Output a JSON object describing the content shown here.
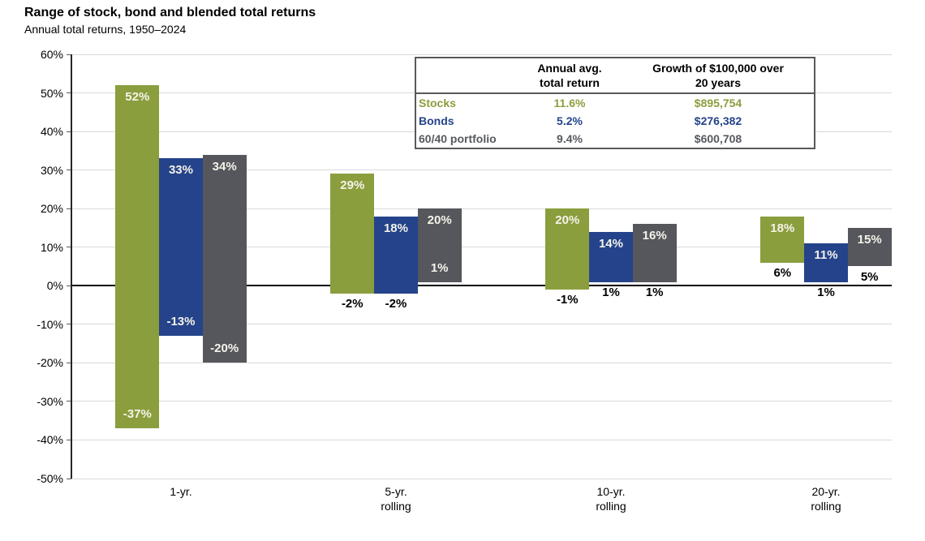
{
  "chart_data": {
    "type": "bar",
    "subtype": "floating-column-ranges",
    "title": "Range of stock, bond and blended total returns",
    "subtitle": "Annual total returns, 1950–2024",
    "categories": [
      "1-yr.",
      "5-yr.\nrolling",
      "10-yr.\nrolling",
      "20-yr.\nrolling"
    ],
    "ylim": [
      -50,
      60
    ],
    "ytick_step": 10,
    "ytick_labels": [
      "60%",
      "50%",
      "40%",
      "30%",
      "20%",
      "10%",
      "0%",
      "-10%",
      "-20%",
      "-30%",
      "-40%",
      "-50%"
    ],
    "grid": true,
    "legend_position": "none",
    "series": [
      {
        "name": "Stocks",
        "color": "#8a9e3d",
        "ranges": [
          {
            "min": -37,
            "max": 52
          },
          {
            "min": -2,
            "max": 29
          },
          {
            "min": -1,
            "max": 20
          },
          {
            "min": 6,
            "max": 18
          }
        ],
        "min_label_pos": [
          "inside",
          "below",
          "below",
          "below"
        ]
      },
      {
        "name": "Bonds",
        "color": "#24438a",
        "ranges": [
          {
            "min": -13,
            "max": 33
          },
          {
            "min": -2,
            "max": 18
          },
          {
            "min": 1,
            "max": 14
          },
          {
            "min": 1,
            "max": 11
          }
        ],
        "min_label_pos": [
          "inside",
          "below",
          "below",
          "below"
        ]
      },
      {
        "name": "60/40 portfolio",
        "color": "#55575c",
        "ranges": [
          {
            "min": -20,
            "max": 34
          },
          {
            "min": 1,
            "max": 20
          },
          {
            "min": 1,
            "max": 16
          },
          {
            "min": 5,
            "max": 15
          }
        ],
        "min_label_pos": [
          "inside",
          "inside",
          "below",
          "below"
        ]
      }
    ]
  },
  "stats_table": {
    "header_avg": "Annual avg.\ntotal return",
    "header_growth": "Growth of $100,000 over\n20 years",
    "rows": [
      {
        "label": "Stocks",
        "avg": "11.6%",
        "growth": "$895,754",
        "color": "#8a9e3d"
      },
      {
        "label": "Bonds",
        "avg": "5.2%",
        "growth": "$276,382",
        "color": "#24438a"
      },
      {
        "label": "60/40 portfolio",
        "avg": "9.4%",
        "growth": "$600,708",
        "color": "#565a60"
      }
    ]
  },
  "colors": {
    "stocks": "#8a9e3d",
    "bonds": "#24438a",
    "blend": "#55575c",
    "gridline": "#d9d9d9",
    "axis": "#262626",
    "bar_label_light": "#f5f3ea",
    "label_dark": "#000000"
  }
}
